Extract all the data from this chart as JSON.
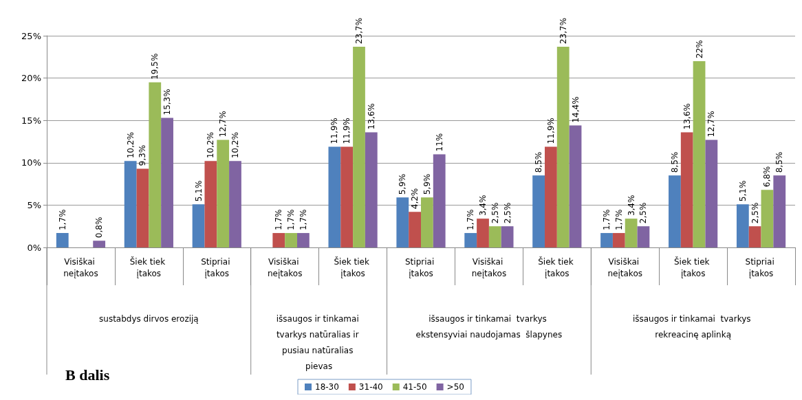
{
  "chart_data": {
    "type": "bar",
    "categories": [
      "Visiškai neįtakos",
      "Šiek tiek įtakos",
      "Stipriai įtakos",
      "Visiškai neįtakos",
      "Šiek tiek įtakos",
      "Stipriai įtakos",
      "Visiškai neįtakos",
      "Šiek tiek įtakos",
      "Visiškai neįtakos",
      "Šiek tiek įtakos",
      "Stipriai įtakos"
    ],
    "series": [
      {
        "name": "18-30",
        "color": "#4f81bd",
        "values": [
          1.7,
          10.2,
          5.1,
          null,
          11.9,
          5.9,
          1.7,
          8.5,
          1.7,
          8.5,
          5.1
        ],
        "value_labels": [
          "1,7%",
          "10,2%",
          "5,1%",
          null,
          "11,9%",
          "5,9%",
          "1,7%",
          "8,5%",
          "1,7%",
          "8,5%",
          "5,1%"
        ]
      },
      {
        "name": "31-40",
        "color": "#c0504d",
        "values": [
          null,
          9.3,
          10.2,
          1.7,
          11.9,
          4.2,
          3.4,
          11.9,
          1.7,
          13.6,
          2.5
        ],
        "value_labels": [
          null,
          "9,3%",
          "10,2%",
          "1,7%",
          "11,9%",
          "4,2%",
          "3,4%",
          "11,9%",
          "1,7%",
          "13,6%",
          "2,5%"
        ]
      },
      {
        "name": "41-50",
        "color": "#9bbb59",
        "values": [
          null,
          19.5,
          12.7,
          1.7,
          23.7,
          5.9,
          2.5,
          23.7,
          3.4,
          22,
          6.8
        ],
        "value_labels": [
          null,
          "19,5%",
          "12,7%",
          "1,7%",
          "23,7%",
          "5,9%",
          "2,5%",
          "23,7%",
          "3,4%",
          "22%",
          "6,8%"
        ]
      },
      {
        "name": ">50",
        "color": "#8064a2",
        "values": [
          0.8,
          15.3,
          10.2,
          1.7,
          13.6,
          11,
          2.5,
          14.4,
          2.5,
          12.7,
          8.5
        ],
        "value_labels": [
          "0,8%",
          "15,3%",
          "10,2%",
          "1,7%",
          "13,6%",
          "11%",
          "2,5%",
          "14,4%",
          "2,5%",
          "12,7%",
          "8,5%"
        ]
      }
    ],
    "ylim": [
      0,
      25
    ],
    "yticks": [
      {
        "value": 0,
        "label": "0%"
      },
      {
        "value": 5,
        "label": "5%"
      },
      {
        "value": 10,
        "label": "10%"
      },
      {
        "value": 15,
        "label": "15%"
      },
      {
        "value": 20,
        "label": "20%"
      },
      {
        "value": 25,
        "label": "25%"
      }
    ],
    "grid": "y",
    "legend": "bottom",
    "annotations": [
      "sustabdys dirvos eroziją",
      "išsaugos ir tinkamai tvarkys natūralias ir pusiau natūralias pievas",
      "išsaugos ir tinkamai  tvarkys ekstensyviai naudojamas  šlapynes",
      "išsaugos ir tinkamai  tvarkys rekreacinę aplinką",
      "B dalis"
    ]
  }
}
